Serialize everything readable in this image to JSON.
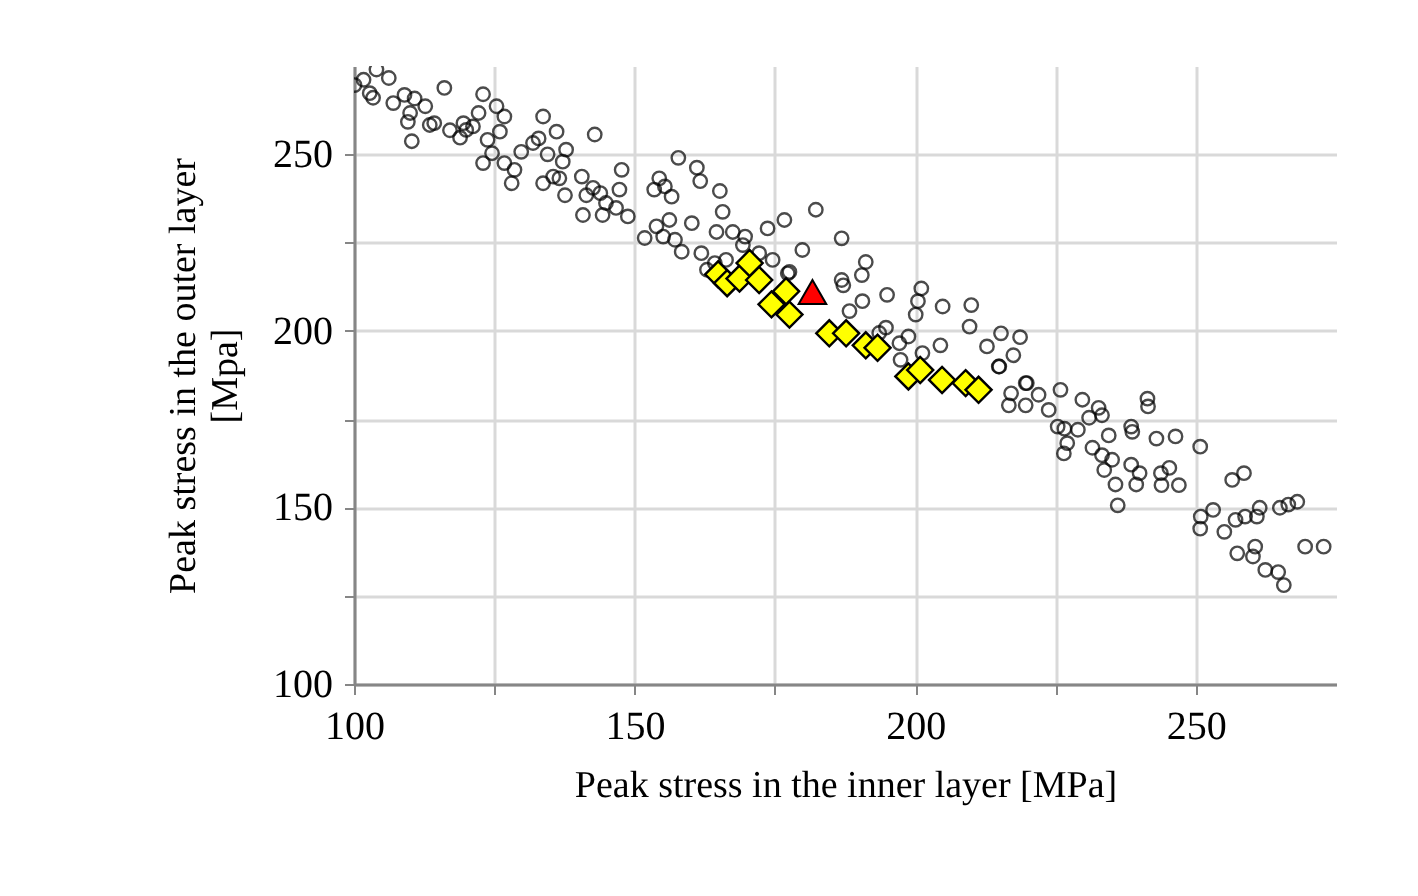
{
  "chart_data": {
    "type": "scatter",
    "xlabel": "Peak stress in the inner layer [MPa]",
    "ylabel": "Peak stress in the outer layer\n[Mpa]",
    "xlim": [
      100,
      275
    ],
    "ylim": [
      100,
      275
    ],
    "xticks": [
      100,
      {
        "value": 125,
        "label": null
      },
      150,
      {
        "value": 175,
        "label": null
      },
      200,
      {
        "value": 225,
        "label": null
      },
      250
    ],
    "yticks": [
      100,
      {
        "value": 125,
        "label": null
      },
      150,
      {
        "value": 175,
        "label": null
      },
      200,
      {
        "value": 225,
        "label": null
      },
      250
    ],
    "grid": true,
    "series": [
      {
        "color": "#000000",
        "marker": "circle",
        "x": [
          100.1,
          101.7,
          104,
          106.2,
          102.8,
          103.4,
          107,
          109,
          110.8,
          110,
          109.6,
          110.3,
          112.7,
          113.5,
          114.3,
          116.1,
          117.1,
          118.9,
          119.5,
          120,
          121.2,
          122.2,
          123,
          123.8,
          123,
          124.6,
          125.4,
          126.8,
          126,
          126.8,
          128.1,
          128.6,
          129.8,
          131.9,
          132.9,
          133.7,
          134.5,
          135.5,
          136.1,
          137.2,
          137.8,
          136.6,
          133.7,
          137.6,
          140.6,
          140.8,
          141.4,
          142.6,
          142.9,
          143.9,
          144.3,
          144.9,
          146.7,
          147.7,
          147.3,
          148.8,
          151.8,
          153.5,
          154.4,
          155.4,
          156.6,
          153.9,
          155.1,
          156.2,
          157.8,
          157.2,
          158.4,
          160.2,
          161.1,
          161.7,
          161.9,
          162.9,
          164.3,
          165.2,
          165.7,
          164.6,
          167.5,
          169.7,
          169.3,
          172.2,
          173.7,
          174.6,
          176.7,
          179.9,
          182.3,
          177.3,
          166.3,
          186.9,
          177.6,
          191.2,
          190.5,
          186.9,
          187.2,
          195,
          190.6,
          188.3,
          201.1,
          200.5,
          200.1,
          204.9,
          210,
          209.7,
          204.5,
          201.3,
          197.2,
          198.8,
          194.8,
          193.6,
          197.4,
          215.3,
          218.7,
          212.8,
          217.5,
          214.9,
          219.7,
          225.9,
          229.8,
          241.4,
          215,
          219.9,
          217.1,
          216.7,
          219.7,
          222,
          223.8,
          225.4,
          226.6,
          227.1,
          226.5,
          229,
          231,
          232.7,
          233.3,
          234.5,
          231.6,
          233.3,
          233.7,
          235.1,
          235.7,
          236.1,
          238.5,
          238.7,
          241.5,
          238.5,
          239.4,
          240,
          243,
          243.8,
          243.9,
          245.3,
          246.4,
          247,
          250.8,
          250.9,
          250.8,
          253.1,
          255.1,
          257.1,
          257.4,
          256.5,
          258.6,
          258.8,
          260.2,
          260.9,
          261.4,
          260.6,
          262.4,
          264.7,
          265.7,
          265,
          266.5,
          268.1,
          269.5,
          272.8
        ],
        "values": [
          269.6,
          271.1,
          274,
          271.6,
          267.3,
          266,
          264.5,
          266.8,
          265.8,
          261.7,
          259.2,
          253.7,
          263.6,
          258.3,
          258.8,
          268.8,
          256.8,
          254.7,
          258.8,
          256.9,
          257.9,
          261.7,
          267,
          254.1,
          247.5,
          250.3,
          263.6,
          260.7,
          256.4,
          247.5,
          241.8,
          245.6,
          250.7,
          253.2,
          254.5,
          260.7,
          250,
          243.7,
          256.4,
          247.9,
          251.3,
          243.2,
          241.8,
          238.4,
          243.7,
          232.8,
          238.4,
          240.5,
          255.6,
          239,
          232.8,
          236.2,
          234.8,
          245.6,
          240,
          232.4,
          226.3,
          240,
          243.2,
          240.9,
          238,
          229.6,
          226.7,
          231.4,
          249,
          225.8,
          222.4,
          230.5,
          246.2,
          242.4,
          222,
          217.3,
          219.2,
          239.6,
          233.7,
          228,
          228,
          226.7,
          224.3,
          222,
          229,
          220.1,
          231.4,
          222.9,
          234.3,
          216.3,
          220.1,
          226.2,
          216.7,
          219.5,
          215.8,
          214.4,
          212.9,
          210.2,
          208.4,
          205.6,
          212,
          208.4,
          204.6,
          206.9,
          207.3,
          201.2,
          195.9,
          193.7,
          196.5,
          198.4,
          200.9,
          199.4,
          191.8,
          199.3,
          198.2,
          195.6,
          193.1,
          189.9,
          185.2,
          183.3,
          180.5,
          180.8,
          189.9,
          185.2,
          182.3,
          178.9,
          178.9,
          181.9,
          177.6,
          172.9,
          172.3,
          168.2,
          165.3,
          172,
          175.4,
          178.2,
          176.1,
          170.4,
          166.9,
          164.8,
          160.6,
          163.5,
          156.5,
          150.6,
          172.9,
          171.4,
          178.6,
          162.1,
          156.5,
          159.7,
          169.5,
          159.7,
          156.3,
          161.2,
          170.1,
          156.3,
          167.2,
          147.4,
          144,
          149.3,
          143.1,
          146.5,
          137,
          157.8,
          159.7,
          147.4,
          136.1,
          147.4,
          149.9,
          138.9,
          132.3,
          131.7,
          128,
          149.9,
          150.8,
          151.6,
          138.9,
          138.9
        ]
      },
      {
        "color": "#ffff00",
        "marker": "diamond",
        "x": [
          164.9,
          166.5,
          168.7,
          170.5,
          172.2,
          174.4,
          177,
          177.6,
          184.7,
          187.7,
          191.2,
          193.3,
          198.8,
          200.9,
          204.8,
          209,
          211.3
        ],
        "values": [
          216,
          213.5,
          214.8,
          219.2,
          214.4,
          207.5,
          211.2,
          204.6,
          199.3,
          199.3,
          195.9,
          195.2,
          187.1,
          188.9,
          186.1,
          185.2,
          183.3
        ]
      },
      {
        "color": "#ff0000",
        "marker": "triangle",
        "x": [
          181.7
        ],
        "values": [
          211
        ]
      }
    ]
  }
}
